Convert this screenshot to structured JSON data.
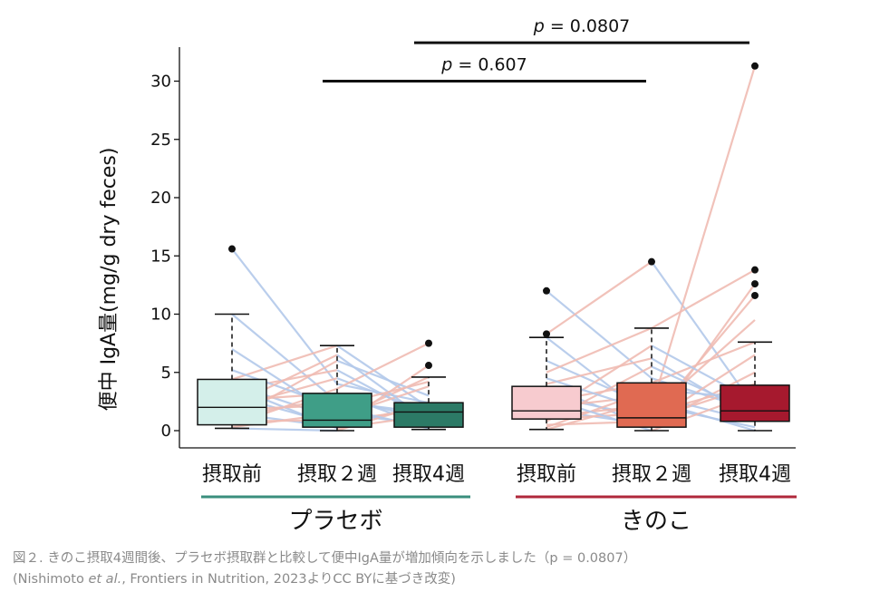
{
  "chart_data": {
    "type": "box",
    "ylabel": "便中 IgA量(mg/g dry feces)",
    "ylim": [
      0,
      32
    ],
    "yticks": [
      0,
      5,
      10,
      15,
      20,
      25,
      30
    ],
    "categories": [
      "摂取前",
      "摂取２週",
      "摂取4週",
      "摂取前",
      "摂取２週",
      "摂取4週"
    ],
    "groups": [
      {
        "name": "プラセボ",
        "categories": [
          0,
          1,
          2
        ],
        "color": "#3a8f7d"
      },
      {
        "name": "きのこ",
        "categories": [
          3,
          4,
          5
        ],
        "color": "#b0283b"
      }
    ],
    "boxes": [
      {
        "q1": 0.5,
        "median": 2.0,
        "q3": 4.4,
        "whisker_low": 0.2,
        "whisker_high": 10.0,
        "outliers": [
          15.6
        ],
        "color": "#d4efea"
      },
      {
        "q1": 0.3,
        "median": 0.9,
        "q3": 3.2,
        "whisker_low": 0.0,
        "whisker_high": 7.3,
        "outliers": [],
        "color": "#3f9e87"
      },
      {
        "q1": 0.3,
        "median": 1.6,
        "q3": 2.4,
        "whisker_low": 0.1,
        "whisker_high": 4.6,
        "outliers": [
          7.5,
          5.6
        ],
        "color": "#2c7a66"
      },
      {
        "q1": 1.0,
        "median": 1.7,
        "q3": 3.8,
        "whisker_low": 0.1,
        "whisker_high": 8.0,
        "outliers": [
          12.0,
          8.3
        ],
        "color": "#f7cbcf"
      },
      {
        "q1": 0.3,
        "median": 1.1,
        "q3": 4.1,
        "whisker_low": 0.0,
        "whisker_high": 8.8,
        "outliers": [
          14.5
        ],
        "color": "#e06a52"
      },
      {
        "q1": 0.8,
        "median": 1.7,
        "q3": 3.9,
        "whisker_low": 0.0,
        "whisker_high": 7.6,
        "outliers": [
          31.3,
          13.8,
          12.6,
          11.6
        ],
        "color": "#a6192e"
      }
    ],
    "paired_lines": {
      "color_increase": "#f0bbb3",
      "color_decrease": "#b3c9ea",
      "placebo": [
        [
          15.6,
          4.0,
          2.4
        ],
        [
          10.0,
          2.5,
          1.5
        ],
        [
          4.4,
          7.3,
          2.0
        ],
        [
          4.0,
          1.0,
          4.6
        ],
        [
          3.5,
          5.2,
          1.0
        ],
        [
          3.0,
          0.5,
          2.2
        ],
        [
          2.6,
          3.2,
          0.3
        ],
        [
          2.0,
          4.5,
          1.6
        ],
        [
          1.5,
          0.3,
          5.6
        ],
        [
          1.2,
          2.8,
          1.0
        ],
        [
          1.0,
          6.0,
          3.0
        ],
        [
          0.8,
          0.9,
          1.8
        ],
        [
          0.5,
          3.6,
          7.5
        ],
        [
          0.3,
          1.5,
          0.5
        ],
        [
          0.2,
          0.0,
          2.4
        ],
        [
          5.2,
          2.0,
          0.2
        ],
        [
          7.0,
          1.2,
          3.8
        ],
        [
          2.2,
          6.5,
          0.8
        ],
        [
          3.8,
          0.2,
          1.3
        ],
        [
          1.8,
          2.2,
          4.2
        ]
      ],
      "kinoko": [
        [
          12.0,
          4.5,
          1.7
        ],
        [
          8.3,
          14.5,
          2.0
        ],
        [
          8.0,
          1.0,
          3.9
        ],
        [
          6.0,
          2.0,
          31.3
        ],
        [
          5.0,
          8.8,
          13.8
        ],
        [
          4.0,
          6.2,
          1.0
        ],
        [
          3.8,
          0.3,
          12.6
        ],
        [
          3.0,
          1.1,
          11.6
        ],
        [
          2.5,
          4.1,
          7.6
        ],
        [
          2.0,
          3.0,
          0.8
        ],
        [
          1.8,
          0.5,
          5.0
        ],
        [
          1.5,
          7.3,
          2.5
        ],
        [
          1.2,
          2.2,
          0.3
        ],
        [
          1.0,
          1.5,
          4.0
        ],
        [
          0.8,
          5.5,
          1.5
        ],
        [
          0.5,
          0.8,
          6.5
        ],
        [
          0.3,
          3.5,
          2.8
        ],
        [
          0.1,
          2.6,
          0.0
        ],
        [
          4.5,
          1.6,
          9.5
        ],
        [
          2.8,
          0.0,
          3.2
        ]
      ]
    },
    "annotations": [
      {
        "label": "p = 0.607",
        "from_category": 1,
        "to_category": 4,
        "y": 30.0
      },
      {
        "label": "p = 0.0807",
        "from_category": 2,
        "to_category": 5,
        "y": 33.3
      }
    ]
  },
  "caption": {
    "line1": "図２. きのこ摂取4週間後、プラセボ摂取群と比較して便中IgA量が増加傾向を示しました（p = 0.0807）",
    "line2_before": "(Nishimoto ",
    "line2_italic": "et al.",
    "line2_after": ", Frontiers in Nutrition, 2023よりCC BYに基づき改変)"
  }
}
